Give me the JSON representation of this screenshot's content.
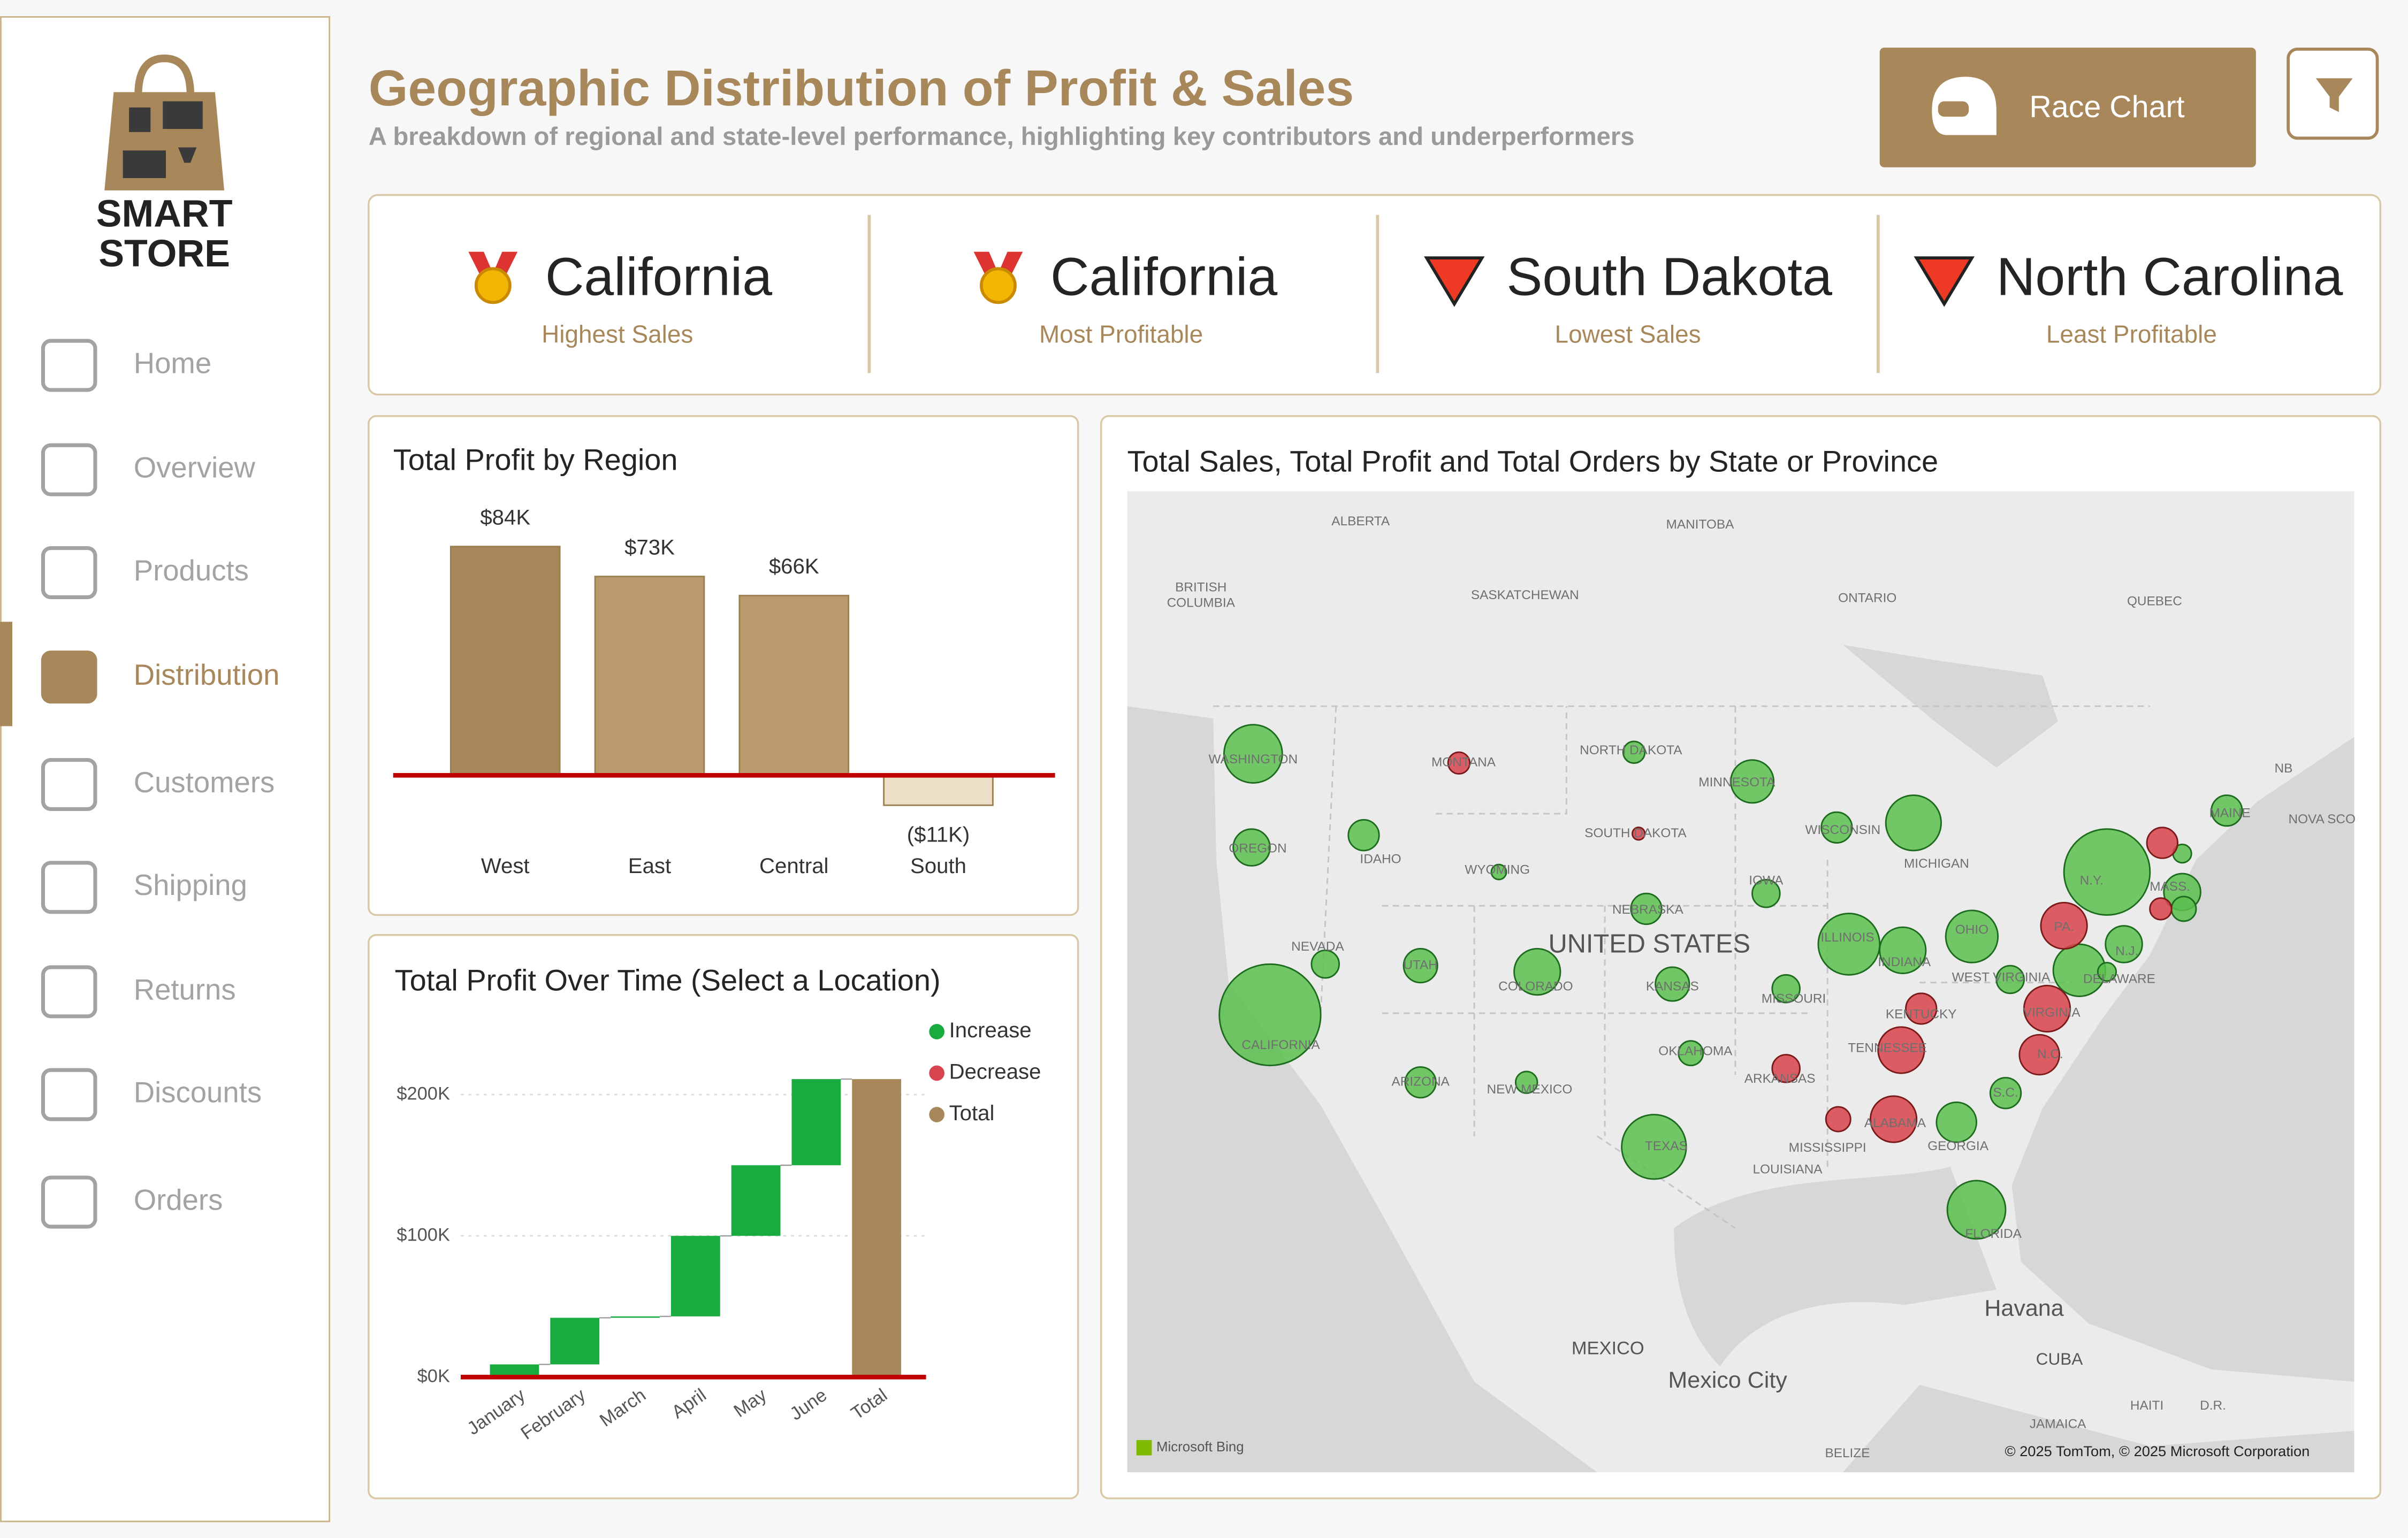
{
  "sidebar": {
    "logo": [
      "SMART",
      "STORE"
    ],
    "nav": [
      "Home",
      "Overview",
      "Products",
      "Distribution",
      "Customers",
      "Shipping",
      "Returns",
      "Discounts",
      "Orders"
    ],
    "active": 3
  },
  "header": {
    "title": "Geographic Distribution of Profit & Sales",
    "subtitle": "A breakdown of regional and state-level performance, highlighting key contributors and underperformers",
    "button": "Race Chart"
  },
  "kpis": [
    {
      "value": "California",
      "label": "Highest Sales"
    },
    {
      "value": "California",
      "label": "Most Profitable"
    },
    {
      "value": "South Dakota",
      "label": "Lowest Sales"
    },
    {
      "value": "North Carolina",
      "label": "Least Profitable"
    }
  ],
  "chart_data": [
    {
      "type": "bar",
      "title": "Total Profit by Region",
      "categories": [
        "West",
        "East",
        "Central",
        "South"
      ],
      "values": [
        84000,
        73000,
        66000,
        -11000
      ],
      "value_labels": [
        "$84K",
        "$73K",
        "$66K",
        "($11K)"
      ],
      "colors": [
        "#a8885a",
        "#b99a6c",
        "#b99a6c",
        "#ecdfc8"
      ]
    },
    {
      "type": "waterfall",
      "title": "Total Profit Over Time (Select a Location)",
      "categories": [
        "January",
        "February",
        "March",
        "April",
        "May",
        "June",
        "Total"
      ],
      "values": [
        9000,
        33000,
        1000,
        57000,
        50000,
        61000,
        211000
      ],
      "measure": [
        "relative",
        "relative",
        "relative",
        "relative",
        "relative",
        "relative",
        "total"
      ],
      "legend": [
        {
          "name": "Increase",
          "color": "#1aab40"
        },
        {
          "name": "Decrease",
          "color": "#d64550"
        },
        {
          "name": "Total",
          "color": "#a8885a"
        }
      ],
      "ylim": [
        0,
        220000
      ],
      "yticks": [
        {
          "value": 0,
          "label": "$0K"
        },
        {
          "value": 100000,
          "label": "$100K"
        },
        {
          "value": 200000,
          "label": "$200K"
        }
      ],
      "grid": true
    },
    {
      "type": "bubble-map",
      "title": "Total Sales, Total Profit and Total Orders by State or Province",
      "series": [
        {
          "color": "#5cbf4f",
          "values": [
            151,
            60,
            42,
            457,
            34,
            51,
            42,
            95,
            21,
            10,
            21,
            82,
            42,
            51,
            27,
            185,
            34,
            42,
            136,
            168,
            95,
            34,
            121,
            71,
            151,
            42,
            34,
            121,
            60,
            329,
            60,
            27,
            15,
            42,
            15
          ]
        },
        {
          "color": "#d9434b",
          "values": [
            21,
            7,
            34,
            27,
            95,
            95,
            42,
            71,
            95,
            95,
            42,
            21
          ]
        }
      ],
      "labels": [
        "ALBERTA",
        "MANITOBA",
        "BRITISH",
        "COLUMBIA",
        "SASKATCHEWAN",
        "ONTARIO",
        "QUEBEC",
        "WASHINGTON",
        "MONTANA",
        "NORTH DAKOTA",
        "MINNESOTA",
        "OREGON",
        "IDAHO",
        "WISCONSIN",
        "SOUTH DAKOTA",
        "MICHIGAN",
        "WYOMING",
        "IOWA",
        "NEBRASKA",
        "NEVADA",
        "UNITED STATES",
        "UTAH",
        "ILLINOIS",
        "INDIANA",
        "OHIO",
        "PA.",
        "N.Y.",
        "COLORADO",
        "KANSAS",
        "MISSOURI",
        "WEST VIRGINIA",
        "VIRGINIA",
        "KENTUCKY",
        "CALIFORNIA",
        "OKLAHOMA",
        "TENNESSEE",
        "N.C.",
        "ARKANSAS",
        "ARIZONA",
        "NEW MEXICO",
        "S.C.",
        "ALABAMA",
        "GEORGIA",
        "MISSISSIPPI",
        "TEXAS",
        "LOUISIANA",
        "FLORIDA",
        "Havana",
        "MEXICO",
        "Mexico City",
        "CUBA",
        "HAITI",
        "D.R.",
        "JAMAICA",
        "BELIZE",
        "NB",
        "NOVA SCO",
        "MAINE",
        "MASS.",
        "N.J.",
        "DELAWARE"
      ],
      "logo": "Microsoft Bing",
      "attribution": "© 2025 TomTom, © 2025 Microsoft Corporation"
    }
  ]
}
